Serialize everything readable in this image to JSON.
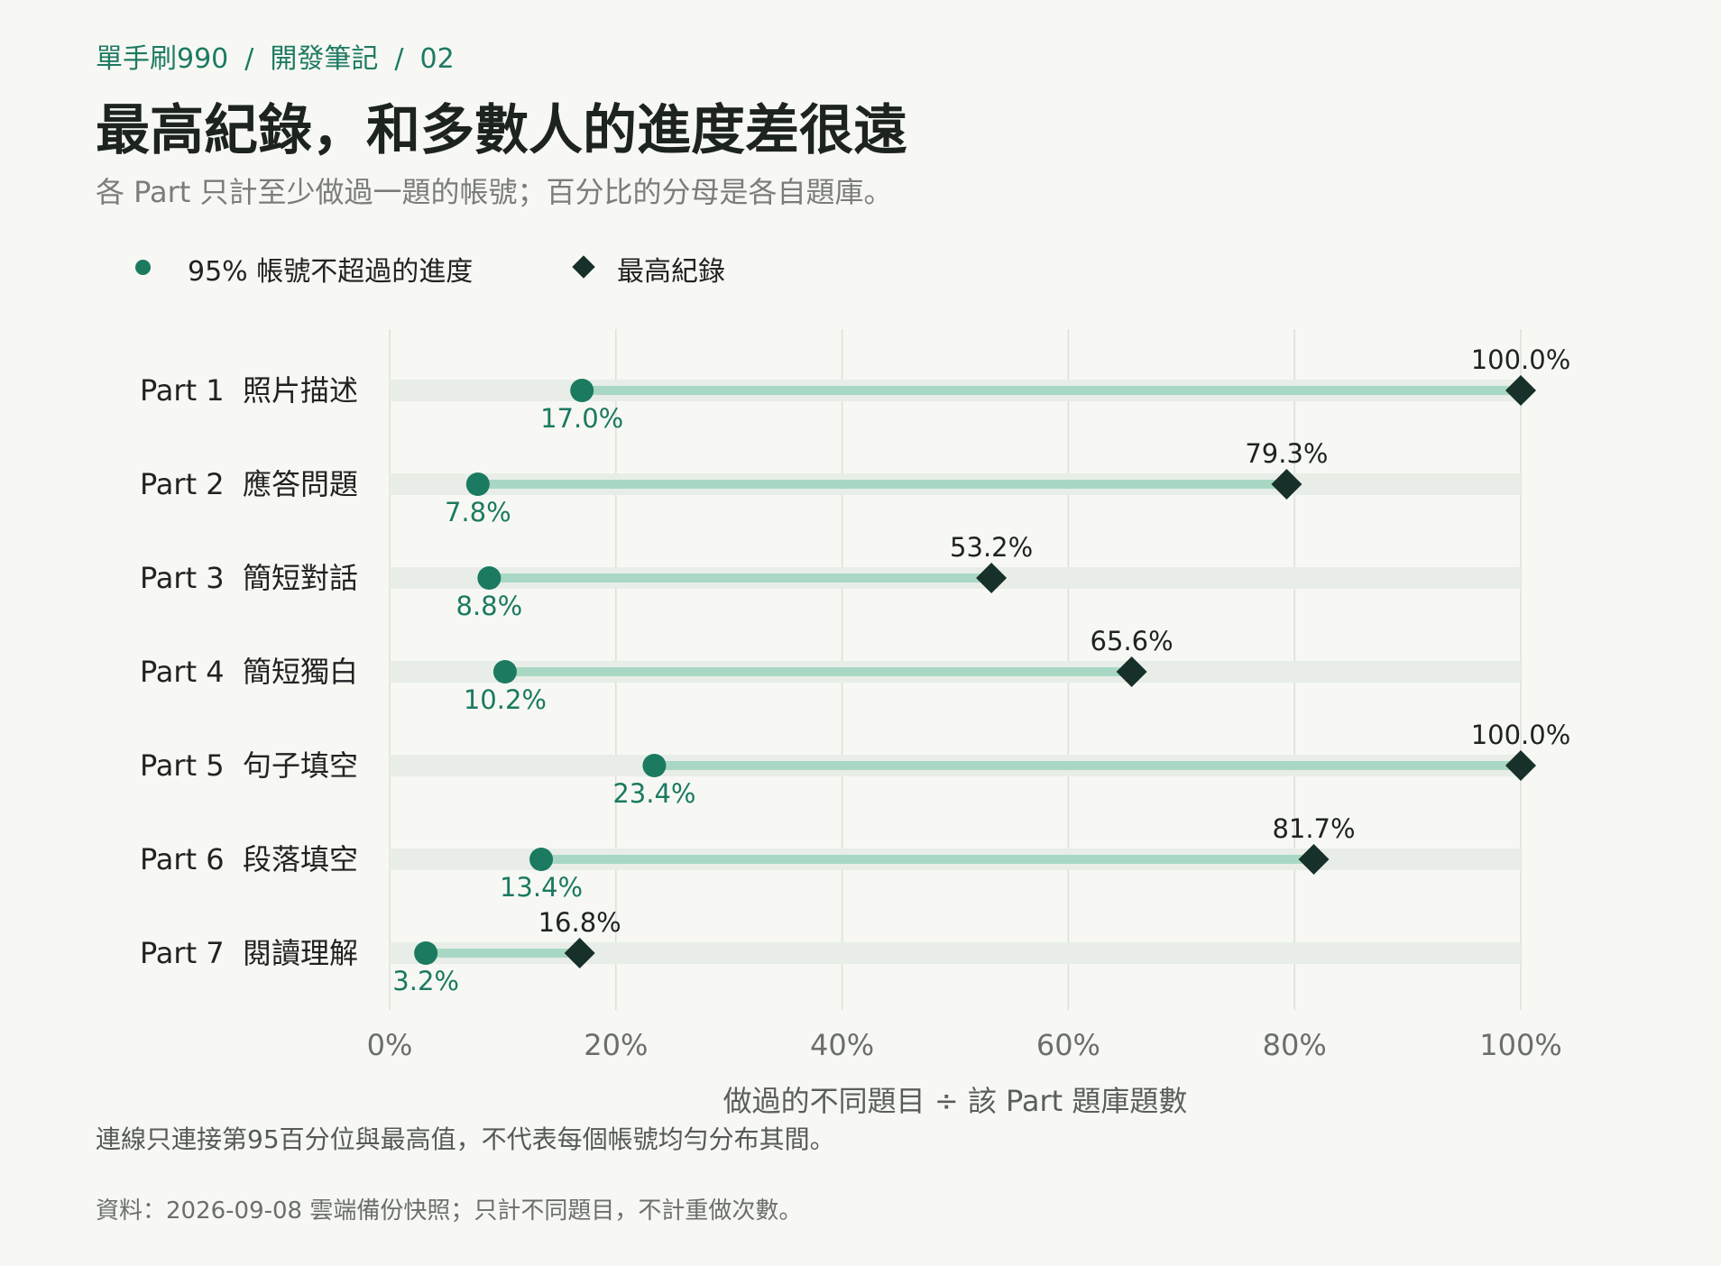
{
  "breadcrumb": {
    "items": [
      "單手刷990",
      "開發筆記",
      "02"
    ],
    "separator": "/"
  },
  "header": {
    "title": "最高紀錄，和多數人的進度差很遠",
    "subtitle": "各 Part 只計至少做過一題的帳號；百分比的分母是各自題庫。"
  },
  "legend": {
    "items": [
      {
        "label": "95% 帳號不超過的進度",
        "marker": "circle",
        "color": "#1b7a60"
      },
      {
        "label": "最高紀錄",
        "marker": "diamond",
        "color": "#17302a"
      }
    ]
  },
  "chart_data": {
    "type": "dumbbell",
    "categories": [
      "Part 1  照片描述",
      "Part 2  應答問題",
      "Part 3  簡短對話",
      "Part 4  簡短獨白",
      "Part 5  句子填空",
      "Part 6  段落填空",
      "Part 7  閱讀理解"
    ],
    "series": [
      {
        "name": "95% 帳號不超過的進度",
        "values": [
          17.0,
          7.8,
          8.8,
          10.2,
          23.4,
          13.4,
          3.2
        ],
        "labels": [
          "17.0%",
          "7.8%",
          "8.8%",
          "10.2%",
          "23.4%",
          "13.4%",
          "3.2%"
        ],
        "color": "#1b7a60"
      },
      {
        "name": "最高紀錄",
        "values": [
          100.0,
          79.3,
          53.2,
          65.6,
          100.0,
          81.7,
          16.8
        ],
        "labels": [
          "100.0%",
          "79.3%",
          "53.2%",
          "65.6%",
          "100.0%",
          "81.7%",
          "16.8%"
        ],
        "color": "#17302a"
      }
    ],
    "xlabel": "做過的不同題目 ÷ 該 Part 題庫題數",
    "xlim": [
      0,
      100
    ],
    "xticks": [
      "0%",
      "20%",
      "40%",
      "60%",
      "80%",
      "100%"
    ],
    "xtick_values": [
      0,
      20,
      40,
      60,
      80,
      100
    ],
    "grid": true,
    "legend_position": "top-left",
    "colors": {
      "track": "#e8eee7",
      "connector": "#a8d8c4",
      "grid": "#dcdfd8",
      "axis_text": "#6b6f6a"
    }
  },
  "footer": {
    "note": "連線只連接第95百分位與最高值，不代表每個帳號均勻分布其間。",
    "source": "資料：2026-09-08 雲端備份快照；只計不同題目，不計重做次數。"
  }
}
